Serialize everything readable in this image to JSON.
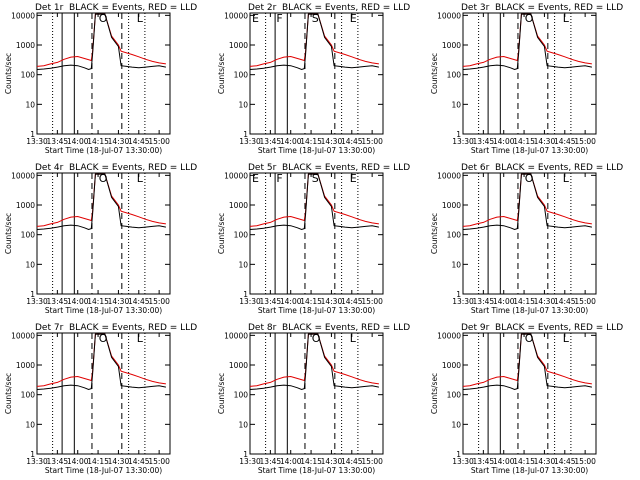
{
  "legend_text": "BLACK = Events, RED = LLD",
  "colors": {
    "events": "#000000",
    "lld": "#e00000",
    "axes": "#000000"
  },
  "chart_data": [
    {
      "type": "line",
      "title": "Det 1r",
      "markers": [
        "",
        "",
        "O",
        "L"
      ]
    },
    {
      "type": "line",
      "title": "Det 2r",
      "markers": [
        "E",
        "F",
        "S",
        "E"
      ]
    },
    {
      "type": "line",
      "title": "Det 3r",
      "markers": [
        "",
        "",
        "O",
        "L"
      ]
    },
    {
      "type": "line",
      "title": "Det 4r",
      "markers": [
        "",
        "",
        "O",
        "L"
      ]
    },
    {
      "type": "line",
      "title": "Det 5r",
      "markers": [
        "E",
        "F",
        "S",
        "E"
      ]
    },
    {
      "type": "line",
      "title": "Det 6r",
      "markers": [
        "",
        "",
        "O",
        "L"
      ]
    },
    {
      "type": "line",
      "title": "Det 7r",
      "markers": [
        "",
        "",
        "O",
        "L"
      ]
    },
    {
      "type": "line",
      "title": "Det 8r",
      "markers": [
        "",
        "",
        "O",
        "L"
      ]
    },
    {
      "type": "line",
      "title": "Det 9r",
      "markers": [
        "",
        "",
        "O",
        "L"
      ]
    }
  ],
  "shared": {
    "xlabel": "Start Time (18-Jul-07 13:30:00)",
    "ylabel": "Counts/sec",
    "x_ticks": [
      "13:30",
      "13:45",
      "14:00",
      "14:15",
      "14:30",
      "14:45",
      "15:00"
    ],
    "x_tick_minutes": [
      0,
      15,
      30,
      45,
      60,
      75,
      90
    ],
    "xlim_minutes": [
      0,
      98
    ],
    "y_ticks": [
      "1",
      "10",
      "100",
      "1000",
      "10000"
    ],
    "y_tick_values": [
      1,
      10,
      100,
      1000,
      10000
    ],
    "ylim": [
      1,
      12000
    ],
    "yscale": "log",
    "vlines": [
      {
        "minute": 11.5,
        "style": "dotted"
      },
      {
        "minute": 18.5,
        "style": "solid"
      },
      {
        "minute": 27.5,
        "style": "solid"
      },
      {
        "minute": 40.5,
        "style": "dashed"
      },
      {
        "minute": 62.5,
        "style": "dashed"
      },
      {
        "minute": 67.5,
        "style": "dotted"
      },
      {
        "minute": 79.5,
        "style": "dotted"
      }
    ],
    "marker_minutes": [
      0,
      18,
      44,
      72
    ],
    "series": [
      {
        "name": "LLD",
        "color": "#e00000",
        "points": [
          [
            0,
            190
          ],
          [
            5,
            200
          ],
          [
            10,
            230
          ],
          [
            15,
            260
          ],
          [
            20,
            330
          ],
          [
            25,
            390
          ],
          [
            30,
            410
          ],
          [
            35,
            350
          ],
          [
            40,
            300
          ],
          [
            41,
            600
          ],
          [
            43,
            11000
          ],
          [
            50,
            11000
          ],
          [
            55,
            2000
          ],
          [
            60,
            1000
          ],
          [
            62,
            620
          ],
          [
            66,
            540
          ],
          [
            70,
            480
          ],
          [
            75,
            400
          ],
          [
            80,
            330
          ],
          [
            85,
            280
          ],
          [
            90,
            250
          ],
          [
            95,
            230
          ]
        ]
      },
      {
        "name": "Events",
        "color": "#000000",
        "points": [
          [
            0,
            150
          ],
          [
            5,
            155
          ],
          [
            10,
            165
          ],
          [
            15,
            180
          ],
          [
            20,
            200
          ],
          [
            25,
            210
          ],
          [
            30,
            200
          ],
          [
            35,
            170
          ],
          [
            38,
            150
          ],
          [
            40,
            160
          ],
          [
            41,
            500
          ],
          [
            43,
            11000
          ],
          [
            50,
            11000
          ],
          [
            55,
            1800
          ],
          [
            60,
            900
          ],
          [
            62,
            200
          ],
          [
            66,
            190
          ],
          [
            70,
            180
          ],
          [
            75,
            170
          ],
          [
            80,
            180
          ],
          [
            85,
            190
          ],
          [
            90,
            200
          ],
          [
            95,
            180
          ]
        ]
      }
    ]
  }
}
